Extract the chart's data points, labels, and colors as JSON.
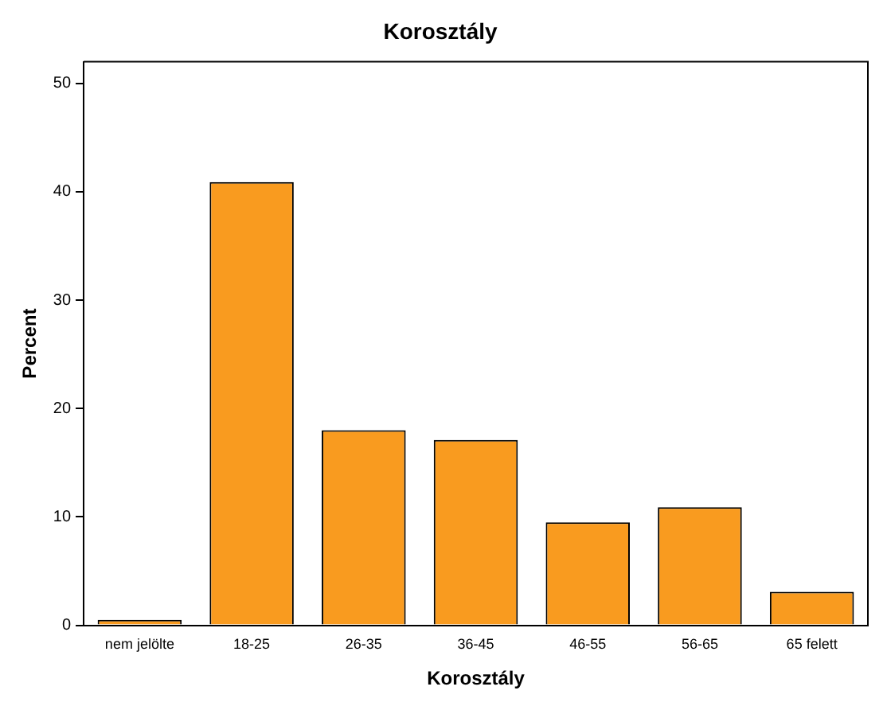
{
  "chart_data": {
    "type": "bar",
    "title": "Korosztály",
    "xlabel": "Korosztály",
    "ylabel": "Percent",
    "categories": [
      "nem jelölte",
      "18-25",
      "26-35",
      "36-45",
      "46-55",
      "56-65",
      "65 felett"
    ],
    "values": [
      0.5,
      40.9,
      18.0,
      17.1,
      9.5,
      10.9,
      3.1
    ],
    "color": "#f99b1f",
    "ylim": [
      0,
      52
    ],
    "yticks": [
      0,
      10,
      20,
      30,
      40,
      50
    ],
    "grid": false,
    "legend": false
  }
}
